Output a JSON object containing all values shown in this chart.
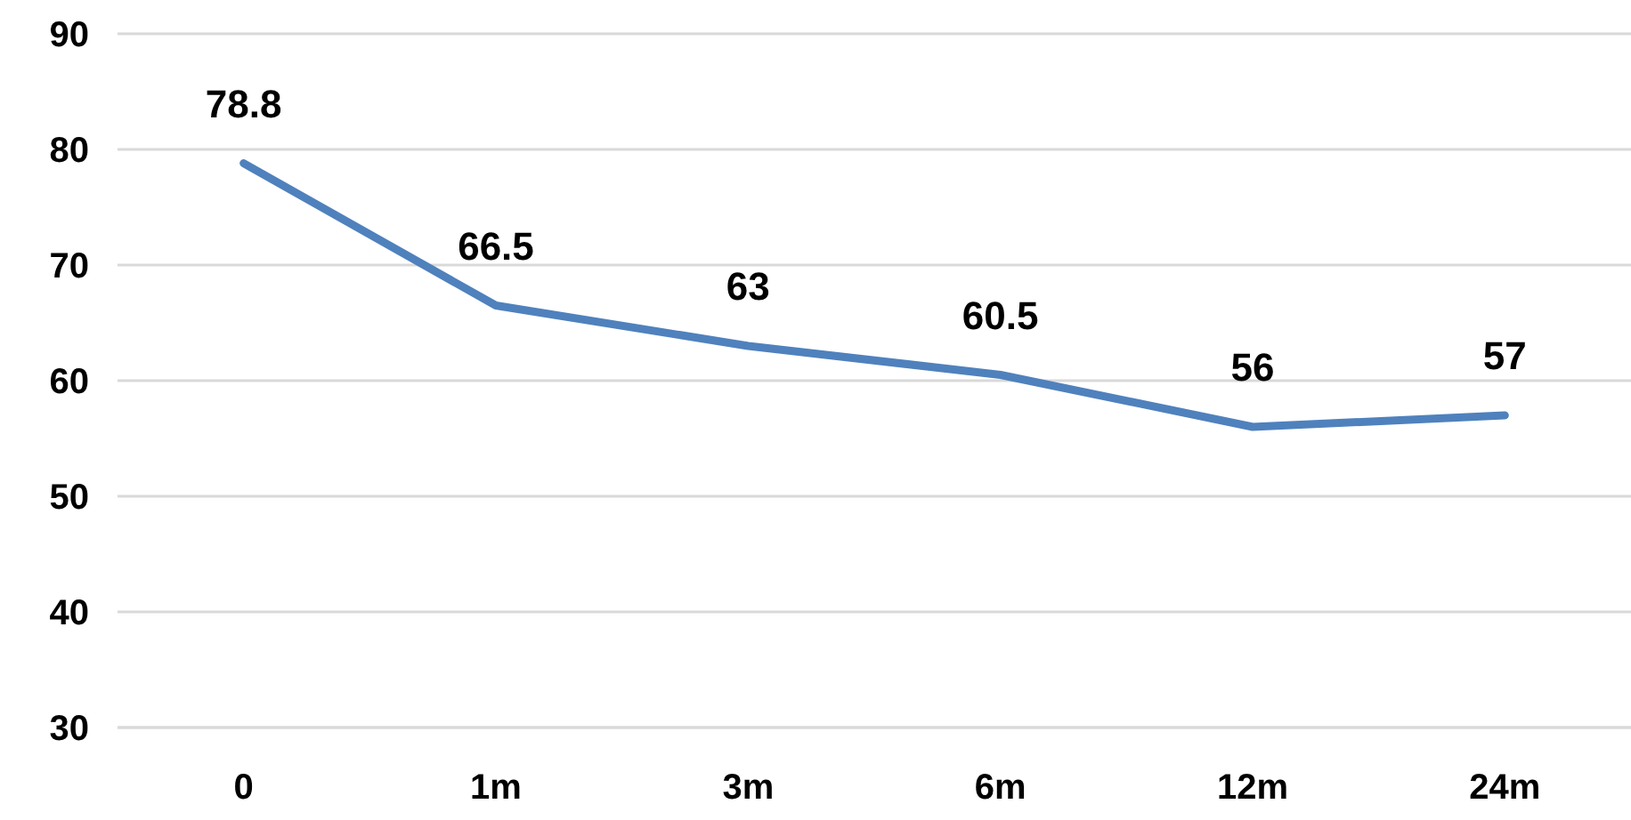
{
  "chart_data": {
    "type": "line",
    "categories": [
      "0",
      "1m",
      "3m",
      "6m",
      "12m",
      "24m"
    ],
    "series": [
      {
        "color": "#4f81bd",
        "values": [
          78.8,
          66.5,
          63,
          60.5,
          56,
          57
        ]
      }
    ],
    "ylim": [
      30,
      90
    ],
    "yticks": [
      30,
      40,
      50,
      60,
      70,
      80,
      90
    ],
    "grid": "y",
    "data_labels": true,
    "marker": "none",
    "line_style": "solid"
  }
}
